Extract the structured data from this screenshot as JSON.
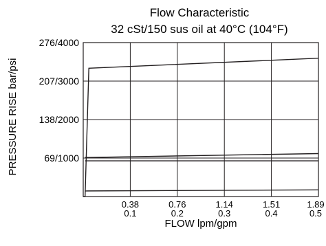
{
  "chart_data": {
    "type": "line",
    "title": "Flow Characteristic",
    "subtitle": "32 cSt/150 sus oil at 40°C (104°F)",
    "xlabel": "FLOW lpm/gpm",
    "ylabel": "PRESSURE RISE bar/psi",
    "xlim": [
      0,
      0.5
    ],
    "ylim": [
      0,
      276
    ],
    "grid": true,
    "x_ticks": [
      {
        "value": 0.1,
        "top": "0.38",
        "bottom": "0.1"
      },
      {
        "value": 0.2,
        "top": "0.76",
        "bottom": "0.2"
      },
      {
        "value": 0.3,
        "top": "1.14",
        "bottom": "0.3"
      },
      {
        "value": 0.4,
        "top": "1.51",
        "bottom": "0.4"
      },
      {
        "value": 0.5,
        "top": "1.89",
        "bottom": "0.5"
      }
    ],
    "y_ticks": [
      {
        "value": 276,
        "label": "276/4000"
      },
      {
        "value": 207,
        "label": "207/3000"
      },
      {
        "value": 138,
        "label": "138/2000"
      },
      {
        "value": 69,
        "label": "69/1000"
      }
    ],
    "series": [
      {
        "values": [
          [
            0,
            0
          ],
          [
            0.004,
            0
          ],
          [
            0.012,
            230
          ],
          [
            0.5,
            248
          ]
        ]
      },
      {
        "values": [
          [
            0.004,
            70
          ],
          [
            0.5,
            77
          ]
        ]
      },
      {
        "values": [
          [
            0.004,
            64
          ],
          [
            0.5,
            64
          ]
        ]
      },
      {
        "values": [
          [
            0.004,
            10
          ],
          [
            0.5,
            12
          ]
        ]
      }
    ]
  }
}
